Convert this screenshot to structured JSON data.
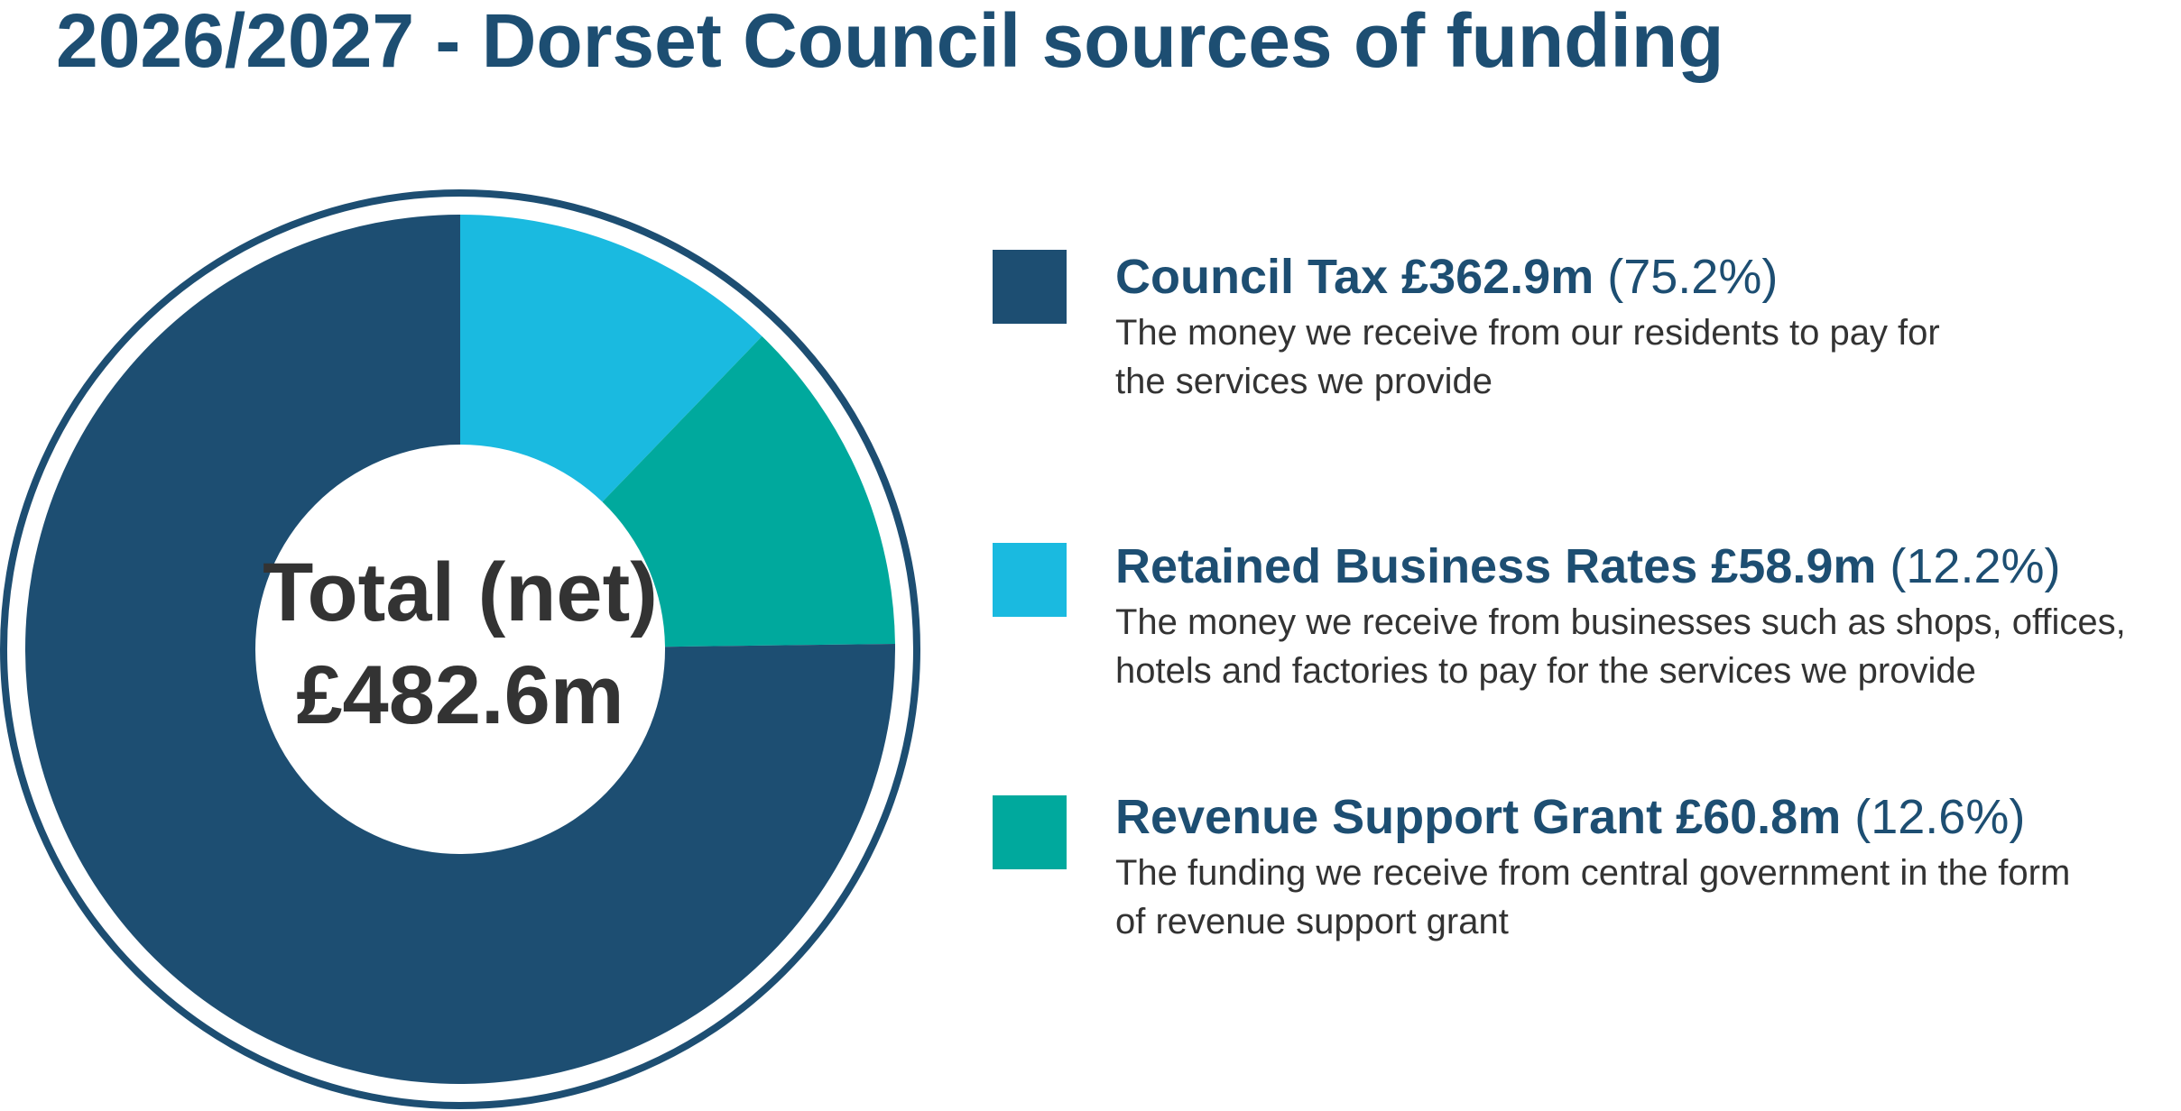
{
  "title": "2026/2027 - Dorset Council sources of funding",
  "colors": {
    "council_tax": "#1d4e72",
    "business_rates": "#1abae0",
    "revenue_support_grant": "#00a99d",
    "title": "#1d4e72",
    "text": "#333333"
  },
  "center": {
    "line1": "Total (net)",
    "line2": "£482.6m"
  },
  "legend": [
    {
      "name": "Council Tax £362.9m",
      "pct": "(75.2%)",
      "desc": "The money we receive from our residents to pay for\nthe services we provide"
    },
    {
      "name": "Retained Business Rates £58.9m",
      "pct": "(12.2%)",
      "desc": "The money we receive from businesses such as shops, offices,\nhotels and factories to pay for the services we provide"
    },
    {
      "name": "Revenue Support Grant £60.8m",
      "pct": "(12.6%)",
      "desc": "The funding we receive from central government in the form\nof revenue support grant"
    }
  ],
  "chart_data": {
    "type": "pie",
    "title": "2026/2027 - Dorset Council sources of funding",
    "unit": "£m",
    "total": 482.6,
    "total_label": "Total (net)",
    "donut": true,
    "legend_position": "right",
    "start_angle_deg": 0,
    "direction": "clockwise",
    "slice_order": [
      "Retained Business Rates",
      "Revenue Support Grant",
      "Council Tax"
    ],
    "categories": [
      "Council Tax",
      "Retained Business Rates",
      "Revenue Support Grant"
    ],
    "values": [
      362.9,
      58.9,
      60.8
    ],
    "percentages": [
      75.2,
      12.2,
      12.6
    ],
    "colors": [
      "#1d4e72",
      "#1abae0",
      "#00a99d"
    ]
  }
}
